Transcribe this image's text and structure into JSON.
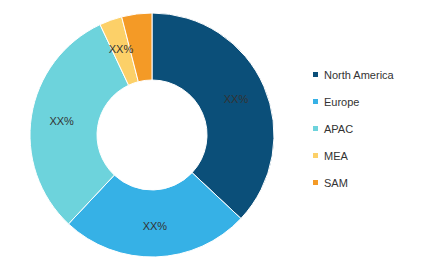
{
  "chart_data": {
    "type": "pie",
    "categories": [
      "North America",
      "Europe",
      "APAC",
      "MEA",
      "SAM"
    ],
    "values": [
      37,
      25,
      31,
      3,
      4
    ],
    "value_labels": [
      "XX%",
      "XX%",
      "XX%",
      "XX%",
      "XX%"
    ],
    "colors": [
      "#0b4f79",
      "#36b1e6",
      "#6dd3dc",
      "#fcd068",
      "#f49a26"
    ],
    "data_labels": true,
    "legend": "right"
  }
}
